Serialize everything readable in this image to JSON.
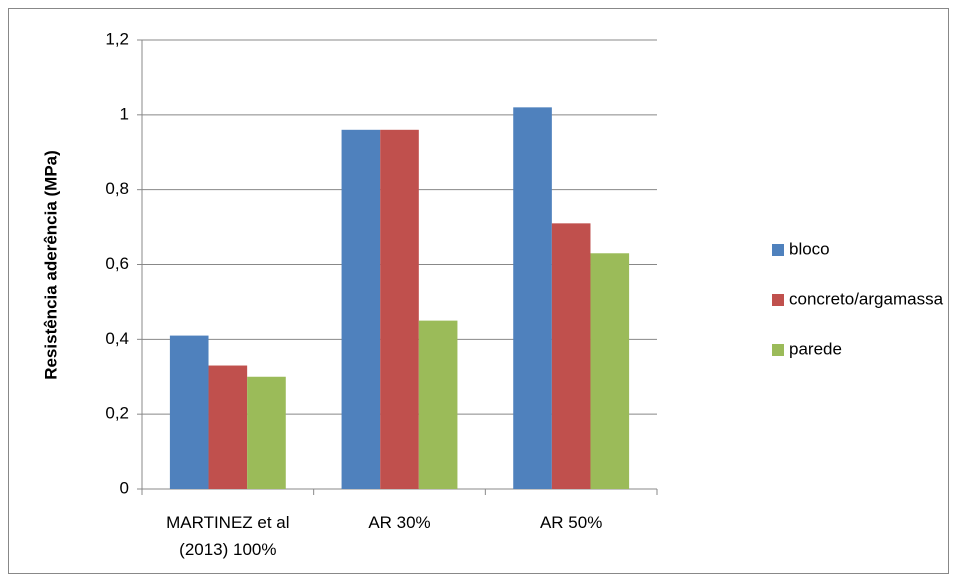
{
  "chart_data": {
    "type": "bar",
    "y_label": "Resistência aderência (MPa)",
    "categories": [
      "MARTINEZ et al (2013) 100%",
      "AR 30%",
      "AR 50%"
    ],
    "series": [
      {
        "name": "bloco",
        "color": "#4f81bd",
        "values": [
          0.41,
          0.96,
          1.02
        ]
      },
      {
        "name": "concreto/argamassa",
        "color": "#c0504d",
        "values": [
          0.33,
          0.96,
          0.71
        ]
      },
      {
        "name": "parede",
        "color": "#9bbb59",
        "values": [
          0.3,
          0.45,
          0.63
        ]
      }
    ],
    "ylim": [
      0,
      1.2
    ],
    "yticks": [
      0,
      {
        "value": 0.2,
        "label": "0,2"
      },
      {
        "value": 0.4,
        "label": "0,4"
      },
      {
        "value": 0.6,
        "label": "0,6"
      },
      {
        "value": 0.8,
        "label": "0,8"
      },
      1,
      {
        "value": 1.2,
        "label": "1,2"
      }
    ],
    "grid": true,
    "legend": "right"
  }
}
